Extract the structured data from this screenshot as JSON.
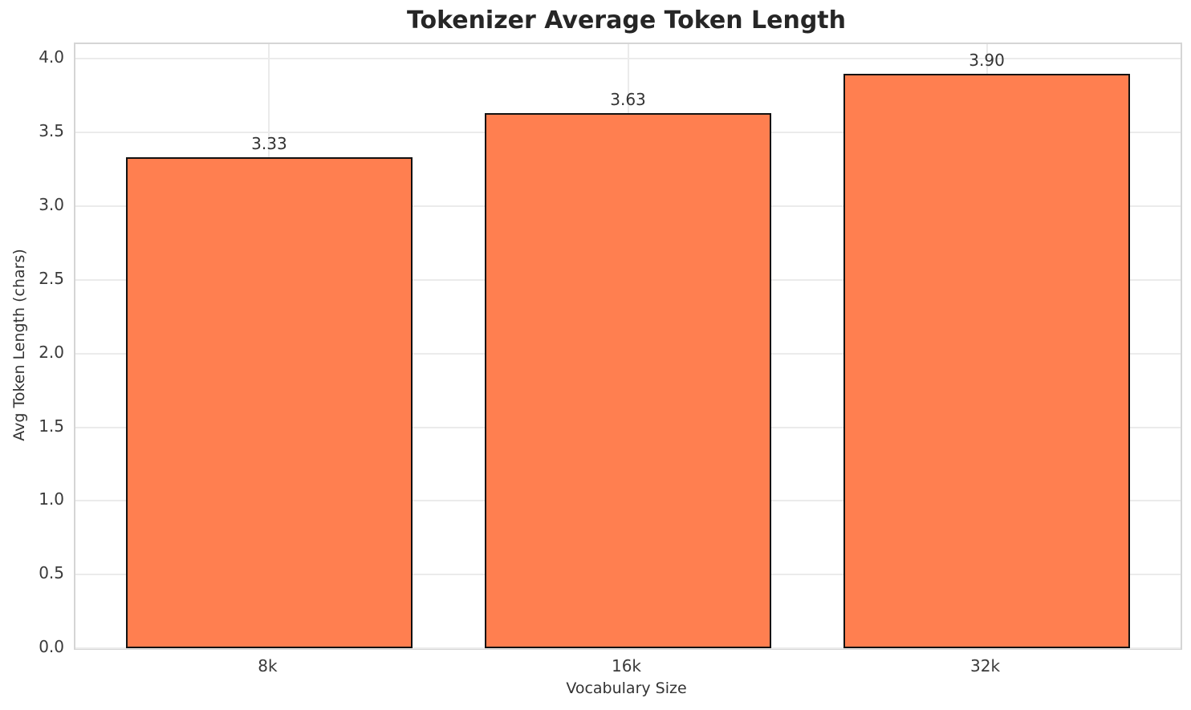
{
  "chart_data": {
    "type": "bar",
    "title": "Tokenizer Average Token Length",
    "xlabel": "Vocabulary Size",
    "ylabel": "Avg Token Length (chars)",
    "categories": [
      "8k",
      "16k",
      "32k"
    ],
    "values": [
      3.33,
      3.63,
      3.9
    ],
    "value_labels": [
      "3.33",
      "3.63",
      "3.90"
    ],
    "yticks": [
      0.0,
      0.5,
      1.0,
      1.5,
      2.0,
      2.5,
      3.0,
      3.5,
      4.0
    ],
    "ytick_labels": [
      "0.0",
      "0.5",
      "1.0",
      "1.5",
      "2.0",
      "2.5",
      "3.0",
      "3.5",
      "4.0"
    ],
    "ylim": [
      0,
      4.1
    ],
    "grid": true,
    "legend": "none",
    "colors": {
      "bar_fill": "#FF7F50",
      "bar_edge": "#111111",
      "grid_line": "#ebebeb",
      "spine": "#d5d5d5",
      "tick_text": "#3a3a3a",
      "label_text": "#333333",
      "title_text": "#262626",
      "background": "#ffffff"
    }
  }
}
